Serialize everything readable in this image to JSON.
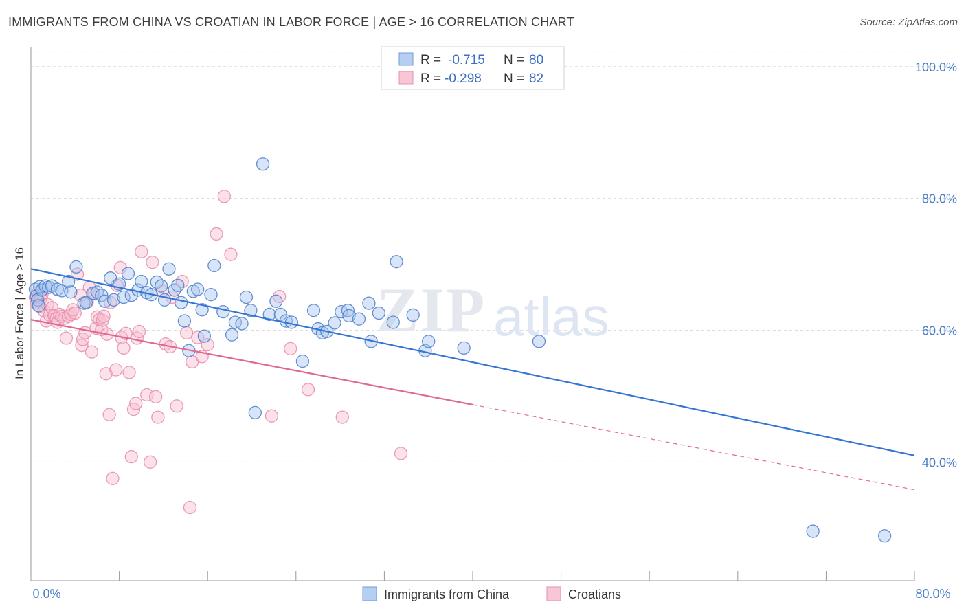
{
  "header": {
    "title": "IMMIGRANTS FROM CHINA VS CROATIAN IN LABOR FORCE | AGE > 16 CORRELATION CHART",
    "source": "Source: ZipAtlas.com"
  },
  "watermark": {
    "zip": "ZIP",
    "atlas": "atlas"
  },
  "colors": {
    "blue": "#4a7ec8",
    "blue_fill": "#a9c6ef",
    "blue_line": "#3575d4",
    "pink": "#e88aa8",
    "pink_fill": "#f7bfd0",
    "pink_line": "#e0698f"
  },
  "legend": {
    "rows": [
      {
        "r_label": "R =",
        "r_value": "-0.715",
        "n_label": "N =",
        "n_value": "80"
      },
      {
        "r_label": "R =",
        "r_value": "-0.298",
        "n_label": "N =",
        "n_value": "82"
      }
    ]
  },
  "chart_data": {
    "type": "scatter",
    "xlabel": "",
    "ylabel": "In Labor Force | Age > 16",
    "xlim": [
      0,
      80
    ],
    "ylim": [
      22,
      103
    ],
    "x_tick_labels": [
      "0.0%",
      "80.0%"
    ],
    "y_ticks": [
      40,
      60,
      80,
      100
    ],
    "y_tick_labels": [
      "40.0%",
      "60.0%",
      "80.0%",
      "100.0%"
    ],
    "grid": true,
    "legend_position": "bottom-center",
    "series": [
      {
        "name": "Immigrants from China",
        "color": "#4a7ec8",
        "trend": {
          "x": [
            0,
            80
          ],
          "y": [
            69.3,
            41.0
          ],
          "dashed_from": null
        },
        "points": [
          [
            0.4,
            66.2
          ],
          [
            0.5,
            65.2
          ],
          [
            0.6,
            64.6
          ],
          [
            0.7,
            63.7
          ],
          [
            0.8,
            66.6
          ],
          [
            1.0,
            66.1
          ],
          [
            1.3,
            66.7
          ],
          [
            1.6,
            66.5
          ],
          [
            1.9,
            66.7
          ],
          [
            2.4,
            66.2
          ],
          [
            2.8,
            66.0
          ],
          [
            3.4,
            67.4
          ],
          [
            3.6,
            65.8
          ],
          [
            4.1,
            69.6
          ],
          [
            4.8,
            64.1
          ],
          [
            5.0,
            64.2
          ],
          [
            5.6,
            65.6
          ],
          [
            6.0,
            65.8
          ],
          [
            6.4,
            65.3
          ],
          [
            6.7,
            64.4
          ],
          [
            7.2,
            67.9
          ],
          [
            7.5,
            64.6
          ],
          [
            8.0,
            67.0
          ],
          [
            8.4,
            65.0
          ],
          [
            8.8,
            68.6
          ],
          [
            9.1,
            65.3
          ],
          [
            9.7,
            66.1
          ],
          [
            10.0,
            67.4
          ],
          [
            10.5,
            65.7
          ],
          [
            10.9,
            65.4
          ],
          [
            11.4,
            67.3
          ],
          [
            11.8,
            66.7
          ],
          [
            12.1,
            64.6
          ],
          [
            12.5,
            69.3
          ],
          [
            13.0,
            66.1
          ],
          [
            13.3,
            66.8
          ],
          [
            13.6,
            64.2
          ],
          [
            13.9,
            61.4
          ],
          [
            14.3,
            56.9
          ],
          [
            14.7,
            65.9
          ],
          [
            15.1,
            66.2
          ],
          [
            15.5,
            63.1
          ],
          [
            15.7,
            59.1
          ],
          [
            16.3,
            65.4
          ],
          [
            16.6,
            69.8
          ],
          [
            17.4,
            62.8
          ],
          [
            18.2,
            59.3
          ],
          [
            18.5,
            61.2
          ],
          [
            19.1,
            61.0
          ],
          [
            19.5,
            65.0
          ],
          [
            19.9,
            63.0
          ],
          [
            20.3,
            47.5
          ],
          [
            21.0,
            85.2
          ],
          [
            21.6,
            62.4
          ],
          [
            22.2,
            64.4
          ],
          [
            22.6,
            62.4
          ],
          [
            23.1,
            61.4
          ],
          [
            23.6,
            61.2
          ],
          [
            24.6,
            55.3
          ],
          [
            25.6,
            63.0
          ],
          [
            26.0,
            60.2
          ],
          [
            26.4,
            59.6
          ],
          [
            26.8,
            59.8
          ],
          [
            27.5,
            61.1
          ],
          [
            28.1,
            62.8
          ],
          [
            28.7,
            63.0
          ],
          [
            28.8,
            62.2
          ],
          [
            29.7,
            61.7
          ],
          [
            30.6,
            64.1
          ],
          [
            30.8,
            58.3
          ],
          [
            31.5,
            62.6
          ],
          [
            32.8,
            61.2
          ],
          [
            33.1,
            70.4
          ],
          [
            34.6,
            62.3
          ],
          [
            35.7,
            56.9
          ],
          [
            36.0,
            58.3
          ],
          [
            39.2,
            57.3
          ],
          [
            46.0,
            58.3
          ],
          [
            70.8,
            29.5
          ],
          [
            77.3,
            28.8
          ]
        ]
      },
      {
        "name": "Croatians",
        "color": "#e88aa8",
        "trend": {
          "x": [
            0,
            80
          ],
          "y": [
            61.6,
            35.8
          ],
          "dashed_from": 40
        },
        "points": [
          [
            0.4,
            65.0
          ],
          [
            0.5,
            64.2
          ],
          [
            0.6,
            65.6
          ],
          [
            0.7,
            65.0
          ],
          [
            0.8,
            63.6
          ],
          [
            0.9,
            64.9
          ],
          [
            1.0,
            65.4
          ],
          [
            1.2,
            62.9
          ],
          [
            1.4,
            61.4
          ],
          [
            1.5,
            63.9
          ],
          [
            1.7,
            62.3
          ],
          [
            1.9,
            63.4
          ],
          [
            2.1,
            62.2
          ],
          [
            2.3,
            61.8
          ],
          [
            2.4,
            61.2
          ],
          [
            2.6,
            62.4
          ],
          [
            2.8,
            62.1
          ],
          [
            3.0,
            61.8
          ],
          [
            3.2,
            58.8
          ],
          [
            3.4,
            62.1
          ],
          [
            3.6,
            62.4
          ],
          [
            3.8,
            63.1
          ],
          [
            4.0,
            62.6
          ],
          [
            4.2,
            68.5
          ],
          [
            4.5,
            65.3
          ],
          [
            4.6,
            57.7
          ],
          [
            4.7,
            58.6
          ],
          [
            4.9,
            59.6
          ],
          [
            5.1,
            64.3
          ],
          [
            5.3,
            66.5
          ],
          [
            5.5,
            56.7
          ],
          [
            5.7,
            65.6
          ],
          [
            5.9,
            60.3
          ],
          [
            6.0,
            62.0
          ],
          [
            6.2,
            61.6
          ],
          [
            6.4,
            60.1
          ],
          [
            6.5,
            61.5
          ],
          [
            6.6,
            62.1
          ],
          [
            6.8,
            53.4
          ],
          [
            6.9,
            59.4
          ],
          [
            7.1,
            47.2
          ],
          [
            7.2,
            64.2
          ],
          [
            7.4,
            37.5
          ],
          [
            7.7,
            54.0
          ],
          [
            7.8,
            66.8
          ],
          [
            8.1,
            69.5
          ],
          [
            8.2,
            58.9
          ],
          [
            8.4,
            57.3
          ],
          [
            8.6,
            59.5
          ],
          [
            8.9,
            53.6
          ],
          [
            9.1,
            40.8
          ],
          [
            9.3,
            48.0
          ],
          [
            9.5,
            48.9
          ],
          [
            9.6,
            58.8
          ],
          [
            9.8,
            59.8
          ],
          [
            10.0,
            71.9
          ],
          [
            10.5,
            50.2
          ],
          [
            10.8,
            40.0
          ],
          [
            11.0,
            70.3
          ],
          [
            11.3,
            49.9
          ],
          [
            11.5,
            46.8
          ],
          [
            11.9,
            65.9
          ],
          [
            12.2,
            57.9
          ],
          [
            12.6,
            57.5
          ],
          [
            12.8,
            65.0
          ],
          [
            13.2,
            48.5
          ],
          [
            13.7,
            67.4
          ],
          [
            14.1,
            59.6
          ],
          [
            14.4,
            33.1
          ],
          [
            14.6,
            55.2
          ],
          [
            15.1,
            58.9
          ],
          [
            15.5,
            56.0
          ],
          [
            16.0,
            57.8
          ],
          [
            16.8,
            74.6
          ],
          [
            17.5,
            80.3
          ],
          [
            18.1,
            71.5
          ],
          [
            21.8,
            47.0
          ],
          [
            22.5,
            65.1
          ],
          [
            23.5,
            57.2
          ],
          [
            25.1,
            51.0
          ],
          [
            28.2,
            46.8
          ],
          [
            33.5,
            41.3
          ]
        ]
      }
    ]
  }
}
